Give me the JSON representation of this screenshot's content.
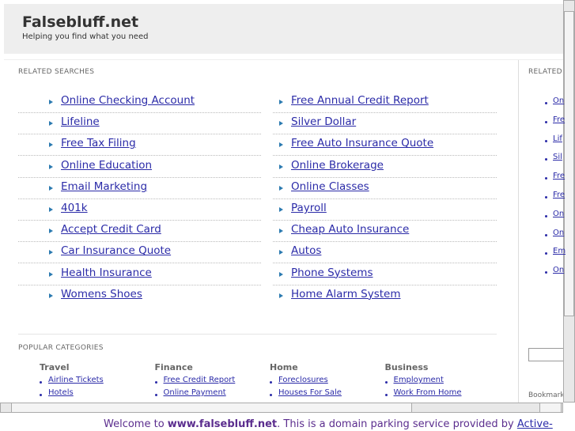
{
  "header": {
    "title": "Falsebluff.net",
    "subtitle": "Helping you find what you need"
  },
  "related_searches": {
    "title": "RELATED SEARCHES",
    "left": [
      "Online Checking Account",
      "Lifeline",
      "Free Tax Filing",
      "Online Education",
      "Email Marketing",
      "401k",
      "Accept Credit Card",
      "Car Insurance Quote",
      "Health Insurance",
      "Womens Shoes"
    ],
    "right": [
      "Free Annual Credit Report",
      "Silver Dollar",
      "Free Auto Insurance Quote",
      "Online Brokerage",
      "Online Classes",
      "Payroll",
      "Cheap Auto Insurance",
      "Autos",
      "Phone Systems",
      "Home Alarm System"
    ]
  },
  "sidebar": {
    "title": "RELATED",
    "links": [
      "On",
      "Fre",
      "Lif",
      "Sil",
      "Fre",
      "Fre",
      "On",
      "On",
      "Em",
      "On"
    ],
    "bookmark": "Bookmark"
  },
  "popular_categories": {
    "title": "POPULAR CATEGORIES",
    "columns": [
      {
        "heading": "Travel",
        "links": [
          "Airline Tickets",
          "Hotels"
        ]
      },
      {
        "heading": "Finance",
        "links": [
          "Free Credit Report",
          "Online Payment"
        ]
      },
      {
        "heading": "Home",
        "links": [
          "Foreclosures",
          "Houses For Sale"
        ]
      },
      {
        "heading": "Business",
        "links": [
          "Employment",
          "Work From Home"
        ]
      }
    ]
  },
  "footer": {
    "prefix": "Welcome to ",
    "domain": "www.falsebluff.net",
    "middle": ". This is a domain parking service provided by ",
    "link": "Active-"
  }
}
